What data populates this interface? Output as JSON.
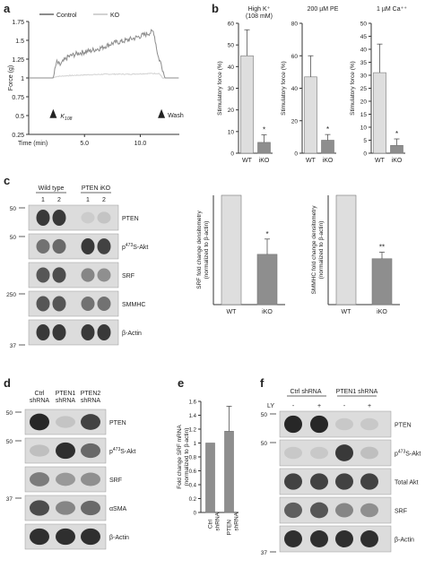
{
  "panels": {
    "a": "a",
    "b": "b",
    "c": "c",
    "d": "d",
    "e": "e",
    "f": "f"
  },
  "colors": {
    "control": "#8c8c8c",
    "ko": "#d2d2d2",
    "wt_bar": "#dedede",
    "ko_bar": "#8e8e8e",
    "blot_bg": "#dcdcdc",
    "band": "#1c1c1c"
  },
  "chart_data": [
    {
      "id": "a",
      "type": "line",
      "ylabel": "Force (g)",
      "xlabel": "Time (min)",
      "ylim": [
        0.25,
        1.75
      ],
      "xlim": [
        0,
        13.5
      ],
      "yticks": [
        "1.75",
        "1.5",
        "1.25",
        "1",
        "0.75",
        "0.5",
        "0.25"
      ],
      "xticks": [
        "5.0",
        "10.0"
      ],
      "grid": false,
      "legend": "top-left",
      "series": [
        {
          "name": "Control",
          "x": [
            0,
            2.2,
            2.5,
            2.8,
            3.5,
            4.5,
            5.5,
            6.5,
            7.5,
            8.5,
            9.5,
            10.5,
            11.2,
            11.6,
            11.9,
            12.2,
            13.5
          ],
          "values": [
            1.0,
            1.0,
            1.21,
            1.17,
            1.28,
            1.33,
            1.36,
            1.4,
            1.46,
            1.49,
            1.53,
            1.58,
            1.62,
            1.28,
            1.18,
            1.0,
            1.0
          ]
        },
        {
          "name": "KO",
          "x": [
            0,
            2.2,
            2.5,
            3.5,
            5.0,
            7.0,
            9.0,
            11.0,
            11.7,
            12.0,
            13.5
          ],
          "values": [
            1.0,
            1.0,
            1.02,
            1.03,
            1.04,
            1.05,
            1.05,
            1.06,
            1.06,
            1.0,
            1.0
          ]
        }
      ],
      "annotations": [
        "K",
        "108",
        "Wash"
      ]
    },
    {
      "id": "b1",
      "type": "bar",
      "title": "High K⁺\n(108 mM)",
      "ylabel": "Stimulatory force (%)",
      "ylim": [
        0,
        60
      ],
      "yticks": [
        "0",
        "10",
        "20",
        "30",
        "40",
        "50",
        "60"
      ],
      "categories": [
        "WT",
        "iKO"
      ],
      "values": [
        45,
        5
      ],
      "errors": [
        12,
        3.5
      ],
      "significance": [
        "",
        "*"
      ]
    },
    {
      "id": "b2",
      "type": "bar",
      "title": "200 µM PE",
      "ylabel": "Stimulatory force (%)",
      "ylim": [
        0,
        80
      ],
      "yticks": [
        "0",
        "20",
        "40",
        "60",
        "80"
      ],
      "categories": [
        "WT",
        "iKO"
      ],
      "values": [
        47,
        8
      ],
      "errors": [
        13,
        3.5
      ],
      "significance": [
        "",
        "*"
      ]
    },
    {
      "id": "b3",
      "type": "bar",
      "title": "1 µM Ca⁺⁺",
      "ylabel": "Stimulatory force (%)",
      "ylim": [
        0,
        50
      ],
      "yticks": [
        "0",
        "5",
        "10",
        "15",
        "20",
        "25",
        "30",
        "35",
        "40",
        "45",
        "50"
      ],
      "categories": [
        "WT",
        "iKO"
      ],
      "values": [
        31,
        3
      ],
      "errors": [
        11,
        2.5
      ],
      "significance": [
        "",
        "*"
      ]
    },
    {
      "id": "c1",
      "type": "bar",
      "ylabel": "SRF fold change densitometry (normalized to β-actin)",
      "ylim": [
        0,
        1
      ],
      "categories": [
        "WT",
        "iKO"
      ],
      "values": [
        1.0,
        0.46
      ],
      "errors": [
        0,
        0.14
      ],
      "significance": [
        "",
        "*"
      ]
    },
    {
      "id": "c2",
      "type": "bar",
      "ylabel": "SMMHC fold change densitometry (normalized to β-actin)",
      "ylim": [
        0,
        1
      ],
      "categories": [
        "WT",
        "iKO"
      ],
      "values": [
        1.0,
        0.42
      ],
      "errors": [
        0,
        0.06
      ],
      "significance": [
        "",
        "**"
      ]
    },
    {
      "id": "e",
      "type": "bar",
      "ylabel": "Fold change SRF mRNA (normalized to β-actin)",
      "ylim": [
        0,
        1.6
      ],
      "yticks": [
        "0",
        "0.2",
        "0.4",
        "0.6",
        "0.8",
        "1",
        "1.2",
        "1.4",
        "1.6"
      ],
      "categories": [
        "Ctrl shRNA",
        "PTEN shRNA"
      ],
      "values": [
        1.0,
        1.17
      ],
      "errors": [
        0,
        0.36
      ]
    }
  ],
  "blots": {
    "c": {
      "groups": [
        "Wild type",
        "PTEN iKO"
      ],
      "lanes": [
        "1",
        "2",
        "1",
        "2"
      ],
      "rows": [
        {
          "label": "PTEN",
          "mw": "50",
          "levels": [
            0.85,
            0.85,
            0.08,
            0.12
          ]
        },
        {
          "label": "p473S-Akt",
          "mw": "50",
          "levels": [
            0.55,
            0.6,
            0.85,
            0.8
          ]
        },
        {
          "label": "SRF",
          "mw": "",
          "levels": [
            0.7,
            0.75,
            0.45,
            0.4
          ]
        },
        {
          "label": "SMMHC",
          "mw": "250",
          "levels": [
            0.7,
            0.7,
            0.55,
            0.55
          ]
        },
        {
          "label": "β-Actin",
          "mw": "37",
          "levels": [
            0.85,
            0.85,
            0.85,
            0.85
          ]
        }
      ]
    },
    "d": {
      "lanes": [
        "Ctrl\nshRNA",
        "PTEN1\nshRNA",
        "PTEN2\nshRNA"
      ],
      "rows": [
        {
          "label": "PTEN",
          "mw": "50",
          "levels": [
            0.95,
            0.12,
            0.8
          ]
        },
        {
          "label": "p473S-Akt",
          "mw": "50",
          "levels": [
            0.15,
            0.9,
            0.6
          ]
        },
        {
          "label": "SRF",
          "mw": "",
          "levels": [
            0.5,
            0.35,
            0.4
          ]
        },
        {
          "label": "αSMA",
          "mw": "37",
          "levels": [
            0.75,
            0.45,
            0.6
          ]
        },
        {
          "label": "β-Actin",
          "mw": "",
          "levels": [
            0.9,
            0.9,
            0.9
          ]
        }
      ]
    },
    "f": {
      "groups": [
        "Ctrl shRNA",
        "PTEN1 shRNA"
      ],
      "ly_label": "LY",
      "lanes": [
        "-",
        "+",
        "-",
        "+"
      ],
      "rows": [
        {
          "label": "PTEN",
          "mw": "50",
          "levels": [
            0.95,
            0.95,
            0.1,
            0.1
          ]
        },
        {
          "label": "p473S-Akt",
          "mw": "50",
          "levels": [
            0.1,
            0.1,
            0.85,
            0.15
          ]
        },
        {
          "label": "Total Akt",
          "mw": "",
          "levels": [
            0.8,
            0.8,
            0.8,
            0.8
          ]
        },
        {
          "label": "SRF",
          "mw": "",
          "levels": [
            0.65,
            0.7,
            0.45,
            0.4
          ]
        },
        {
          "label": "β-Actin",
          "mw": "37",
          "levels": [
            0.9,
            0.9,
            0.9,
            0.9
          ]
        }
      ]
    }
  }
}
